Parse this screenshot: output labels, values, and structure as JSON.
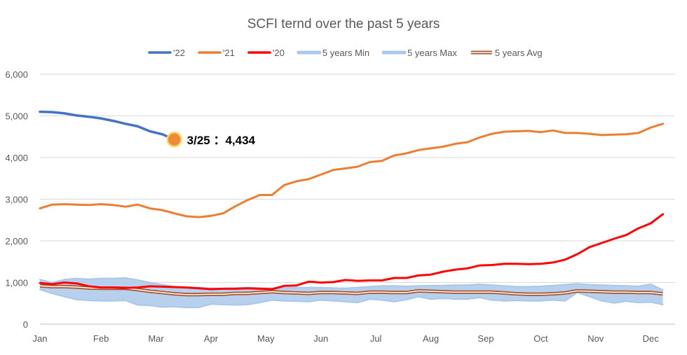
{
  "chart_data": {
    "type": "line",
    "title": "SCFI ternd over the past 5 years",
    "xlabel": "",
    "ylabel": "",
    "ylim": [
      0,
      6000
    ],
    "y_ticks": [
      "0",
      "1,000",
      "2,000",
      "3,000",
      "4,000",
      "5,000",
      "6,000"
    ],
    "y_tick_values": [
      0,
      1000,
      2000,
      3000,
      4000,
      5000,
      6000
    ],
    "x_range": [
      1,
      53
    ],
    "x_ticks": [
      "Jan",
      "Feb",
      "Mar",
      "Apr",
      "May",
      "Jun",
      "Jul",
      "Aug",
      "Sep",
      "Oct",
      "Nov",
      "Dec"
    ],
    "x_tick_weeks": [
      1,
      6,
      10.5,
      15,
      19.5,
      24,
      28.5,
      33,
      37.5,
      42,
      46.5,
      51
    ],
    "grid": true,
    "legend_position": "top",
    "annotation": {
      "label": "3/25 ：4,434",
      "week": 12,
      "value": 4434,
      "color": "#ee8a3a"
    },
    "series": [
      {
        "name": "'22",
        "color": "#4472c4",
        "values": [
          5100,
          5090,
          5060,
          5010,
          4980,
          4940,
          4880,
          4810,
          4750,
          4630,
          4560,
          4434
        ]
      },
      {
        "name": "'21",
        "color": "#ed7d31",
        "values": [
          2780,
          2870,
          2880,
          2870,
          2860,
          2880,
          2860,
          2820,
          2870,
          2780,
          2740,
          2660,
          2590,
          2570,
          2600,
          2660,
          2830,
          2980,
          3100,
          3100,
          3340,
          3430,
          3480,
          3590,
          3700,
          3740,
          3780,
          3890,
          3920,
          4050,
          4100,
          4180,
          4220,
          4260,
          4330,
          4370,
          4480,
          4570,
          4620,
          4630,
          4640,
          4610,
          4650,
          4590,
          4590,
          4570,
          4540,
          4550,
          4560,
          4590,
          4720,
          4810
        ]
      },
      {
        "name": "'20",
        "color": "#ff0000",
        "values": [
          990,
          960,
          1000,
          980,
          910,
          880,
          880,
          870,
          880,
          910,
          900,
          890,
          880,
          860,
          840,
          850,
          850,
          860,
          850,
          840,
          920,
          930,
          1020,
          1000,
          1010,
          1060,
          1040,
          1050,
          1050,
          1110,
          1110,
          1170,
          1190,
          1260,
          1310,
          1340,
          1410,
          1420,
          1450,
          1450,
          1440,
          1450,
          1480,
          1550,
          1680,
          1850,
          1950,
          2050,
          2140,
          2300,
          2420,
          2640
        ]
      },
      {
        "name": "5 years Min",
        "color": "#a9c8ea",
        "values": [
          830,
          740,
          660,
          590,
          570,
          560,
          560,
          570,
          460,
          450,
          410,
          420,
          400,
          400,
          480,
          470,
          460,
          470,
          520,
          580,
          560,
          550,
          540,
          580,
          560,
          540,
          520,
          600,
          580,
          540,
          590,
          660,
          600,
          620,
          600,
          600,
          640,
          580,
          560,
          570,
          560,
          560,
          580,
          560,
          760,
          660,
          560,
          510,
          550,
          520,
          530,
          470
        ]
      },
      {
        "name": "5 years Max",
        "color": "#a9c8ea",
        "values": [
          1070,
          1000,
          1070,
          1100,
          1080,
          1100,
          1100,
          1110,
          1060,
          1000,
          950,
          900,
          880,
          880,
          860,
          860,
          870,
          880,
          870,
          860,
          870,
          880,
          880,
          880,
          870,
          860,
          880,
          900,
          920,
          920,
          910,
          920,
          930,
          930,
          940,
          940,
          960,
          940,
          920,
          900,
          900,
          910,
          930,
          950,
          970,
          950,
          940,
          930,
          920,
          910,
          960,
          820
        ]
      },
      {
        "name": "5 years Avg",
        "color": "#a9542a",
        "values": [
          920,
          900,
          900,
          890,
          870,
          860,
          860,
          860,
          830,
          790,
          760,
          730,
          710,
          710,
          720,
          720,
          740,
          740,
          760,
          780,
          760,
          750,
          740,
          760,
          760,
          750,
          740,
          770,
          770,
          760,
          760,
          800,
          790,
          780,
          770,
          770,
          770,
          770,
          750,
          730,
          720,
          720,
          730,
          750,
          800,
          790,
          780,
          770,
          770,
          760,
          760,
          730
        ]
      }
    ]
  }
}
